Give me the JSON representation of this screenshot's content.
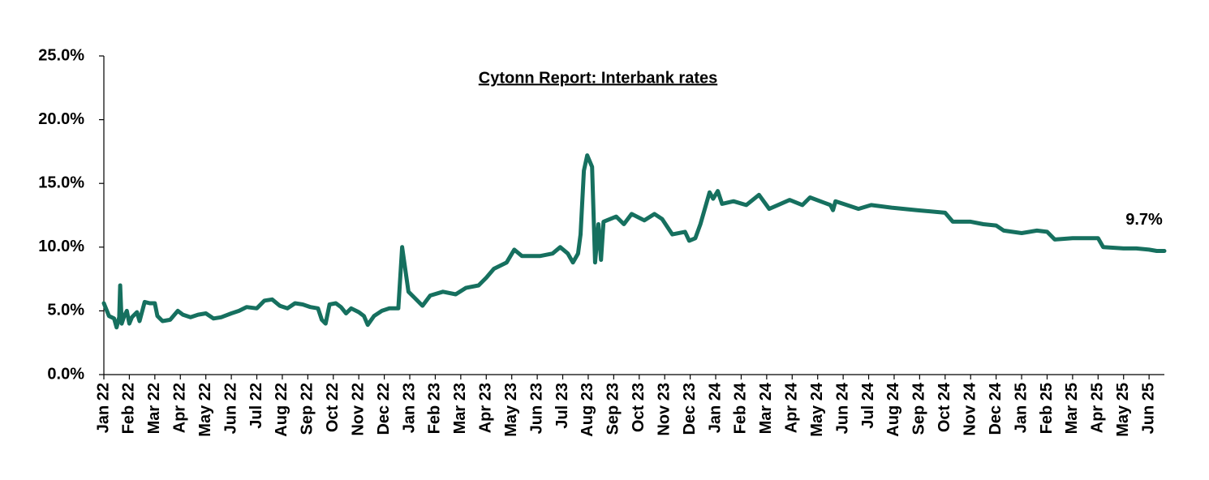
{
  "chart_data": {
    "type": "line",
    "title": "Cytonn Report: Interbank rates",
    "x": [
      0,
      0.2,
      0.4,
      0.5,
      0.6,
      0.64,
      0.7,
      0.8,
      0.9,
      1.0,
      1.1,
      1.3,
      1.4,
      1.6,
      1.8,
      2.0,
      2.1,
      2.3,
      2.6,
      2.9,
      3.1,
      3.4,
      3.7,
      4.0,
      4.3,
      4.6,
      5.0,
      5.3,
      5.6,
      6.0,
      6.3,
      6.6,
      6.9,
      7.2,
      7.5,
      7.8,
      8.1,
      8.4,
      8.55,
      8.7,
      8.85,
      9.1,
      9.3,
      9.5,
      9.7,
      10.0,
      10.2,
      10.35,
      10.6,
      10.9,
      11.2,
      11.55,
      11.7,
      11.95,
      12.5,
      12.8,
      13.3,
      13.8,
      14.2,
      14.7,
      15.0,
      15.3,
      15.8,
      16.1,
      16.4,
      17.1,
      17.6,
      17.9,
      18.2,
      18.4,
      18.6,
      18.7,
      18.83,
      18.96,
      19.15,
      19.27,
      19.4,
      19.5,
      19.6,
      20.1,
      20.4,
      20.7,
      21.2,
      21.6,
      21.9,
      22.3,
      22.8,
      22.96,
      23.2,
      23.4,
      23.76,
      23.9,
      24.08,
      24.25,
      24.7,
      25.2,
      25.7,
      26.1,
      26.9,
      27.4,
      27.7,
      28.5,
      28.6,
      28.7,
      29.6,
      30.1,
      30.9,
      31.9,
      33.0,
      33.3,
      34.0,
      34.5,
      35.0,
      35.3,
      36.0,
      36.6,
      37.0,
      37.3,
      38.0,
      39.0,
      39.2,
      40.0,
      40.5,
      41.0,
      41.3,
      41.6
    ],
    "values": [
      5.6,
      4.6,
      4.4,
      3.7,
      4.5,
      7.0,
      4.0,
      4.6,
      5.0,
      4.0,
      4.5,
      4.9,
      4.2,
      5.7,
      5.6,
      5.6,
      4.6,
      4.2,
      4.3,
      5.0,
      4.7,
      4.5,
      4.7,
      4.8,
      4.4,
      4.5,
      4.8,
      5.0,
      5.3,
      5.2,
      5.8,
      5.9,
      5.4,
      5.2,
      5.6,
      5.5,
      5.3,
      5.2,
      4.3,
      4.0,
      5.5,
      5.6,
      5.3,
      4.8,
      5.2,
      4.9,
      4.6,
      3.9,
      4.6,
      5.0,
      5.2,
      5.2,
      10.0,
      6.5,
      5.4,
      6.2,
      6.5,
      6.3,
      6.8,
      7.0,
      7.6,
      8.3,
      8.8,
      9.8,
      9.3,
      9.3,
      9.5,
      10.0,
      9.5,
      8.8,
      9.5,
      11.0,
      16.0,
      17.2,
      16.3,
      8.8,
      11.8,
      9.0,
      12.0,
      12.4,
      11.8,
      12.6,
      12.1,
      12.6,
      12.2,
      11.0,
      11.2,
      10.5,
      10.7,
      11.8,
      14.3,
      13.8,
      14.4,
      13.4,
      13.6,
      13.3,
      14.1,
      13.0,
      13.7,
      13.3,
      13.9,
      13.3,
      12.9,
      13.6,
      13.0,
      13.3,
      13.1,
      12.9,
      12.7,
      12.0,
      12.0,
      11.8,
      11.7,
      11.3,
      11.1,
      11.3,
      11.2,
      10.6,
      10.7,
      10.7,
      10.0,
      9.9,
      9.9,
      9.8,
      9.7,
      9.7
    ],
    "end_label": "9.7%",
    "color": "#16705f",
    "xlim": [
      0,
      41.6
    ],
    "xticks": [
      {
        "value": 0,
        "label": "Jan 22"
      },
      {
        "value": 1,
        "label": "Feb 22"
      },
      {
        "value": 2,
        "label": "Mar 22"
      },
      {
        "value": 3,
        "label": "Apr 22"
      },
      {
        "value": 4,
        "label": "May 22"
      },
      {
        "value": 5,
        "label": "Jun 22"
      },
      {
        "value": 6,
        "label": "Jul 22"
      },
      {
        "value": 7,
        "label": "Aug 22"
      },
      {
        "value": 8,
        "label": "Sep 22"
      },
      {
        "value": 9,
        "label": "Oct 22"
      },
      {
        "value": 10,
        "label": "Nov 22"
      },
      {
        "value": 11,
        "label": "Dec 22"
      },
      {
        "value": 12,
        "label": "Jan 23"
      },
      {
        "value": 13,
        "label": "Feb 23"
      },
      {
        "value": 14,
        "label": "Mar 23"
      },
      {
        "value": 15,
        "label": "Apr 23"
      },
      {
        "value": 16,
        "label": "May 23"
      },
      {
        "value": 17,
        "label": "Jun 23"
      },
      {
        "value": 18,
        "label": "Jul 23"
      },
      {
        "value": 19,
        "label": "Aug 23"
      },
      {
        "value": 20,
        "label": "Sep 23"
      },
      {
        "value": 21,
        "label": "Oct 23"
      },
      {
        "value": 22,
        "label": "Nov 23"
      },
      {
        "value": 23,
        "label": "Dec 23"
      },
      {
        "value": 24,
        "label": "Jan 24"
      },
      {
        "value": 25,
        "label": "Feb 24"
      },
      {
        "value": 26,
        "label": "Mar 24"
      },
      {
        "value": 27,
        "label": "Apr 24"
      },
      {
        "value": 28,
        "label": "May 24"
      },
      {
        "value": 29,
        "label": "Jun 24"
      },
      {
        "value": 30,
        "label": "Jul 24"
      },
      {
        "value": 31,
        "label": "Aug 24"
      },
      {
        "value": 32,
        "label": "Sep 24"
      },
      {
        "value": 33,
        "label": "Oct 24"
      },
      {
        "value": 34,
        "label": "Nov 24"
      },
      {
        "value": 35,
        "label": "Dec 24"
      },
      {
        "value": 36,
        "label": "Jan 25"
      },
      {
        "value": 37,
        "label": "Feb 25"
      },
      {
        "value": 38,
        "label": "Mar 25"
      },
      {
        "value": 39,
        "label": "Apr 25"
      },
      {
        "value": 40,
        "label": "May 25"
      },
      {
        "value": 41,
        "label": "Jun 25"
      }
    ],
    "ylim": [
      0,
      25
    ],
    "yticks": [
      {
        "value": 0,
        "label": "0.0%"
      },
      {
        "value": 5,
        "label": "5.0%"
      },
      {
        "value": 10,
        "label": "10.0%"
      },
      {
        "value": 15,
        "label": "15.0%"
      },
      {
        "value": 20,
        "label": "20.0%"
      },
      {
        "value": 25,
        "label": "25.0%"
      }
    ],
    "grid": false
  }
}
